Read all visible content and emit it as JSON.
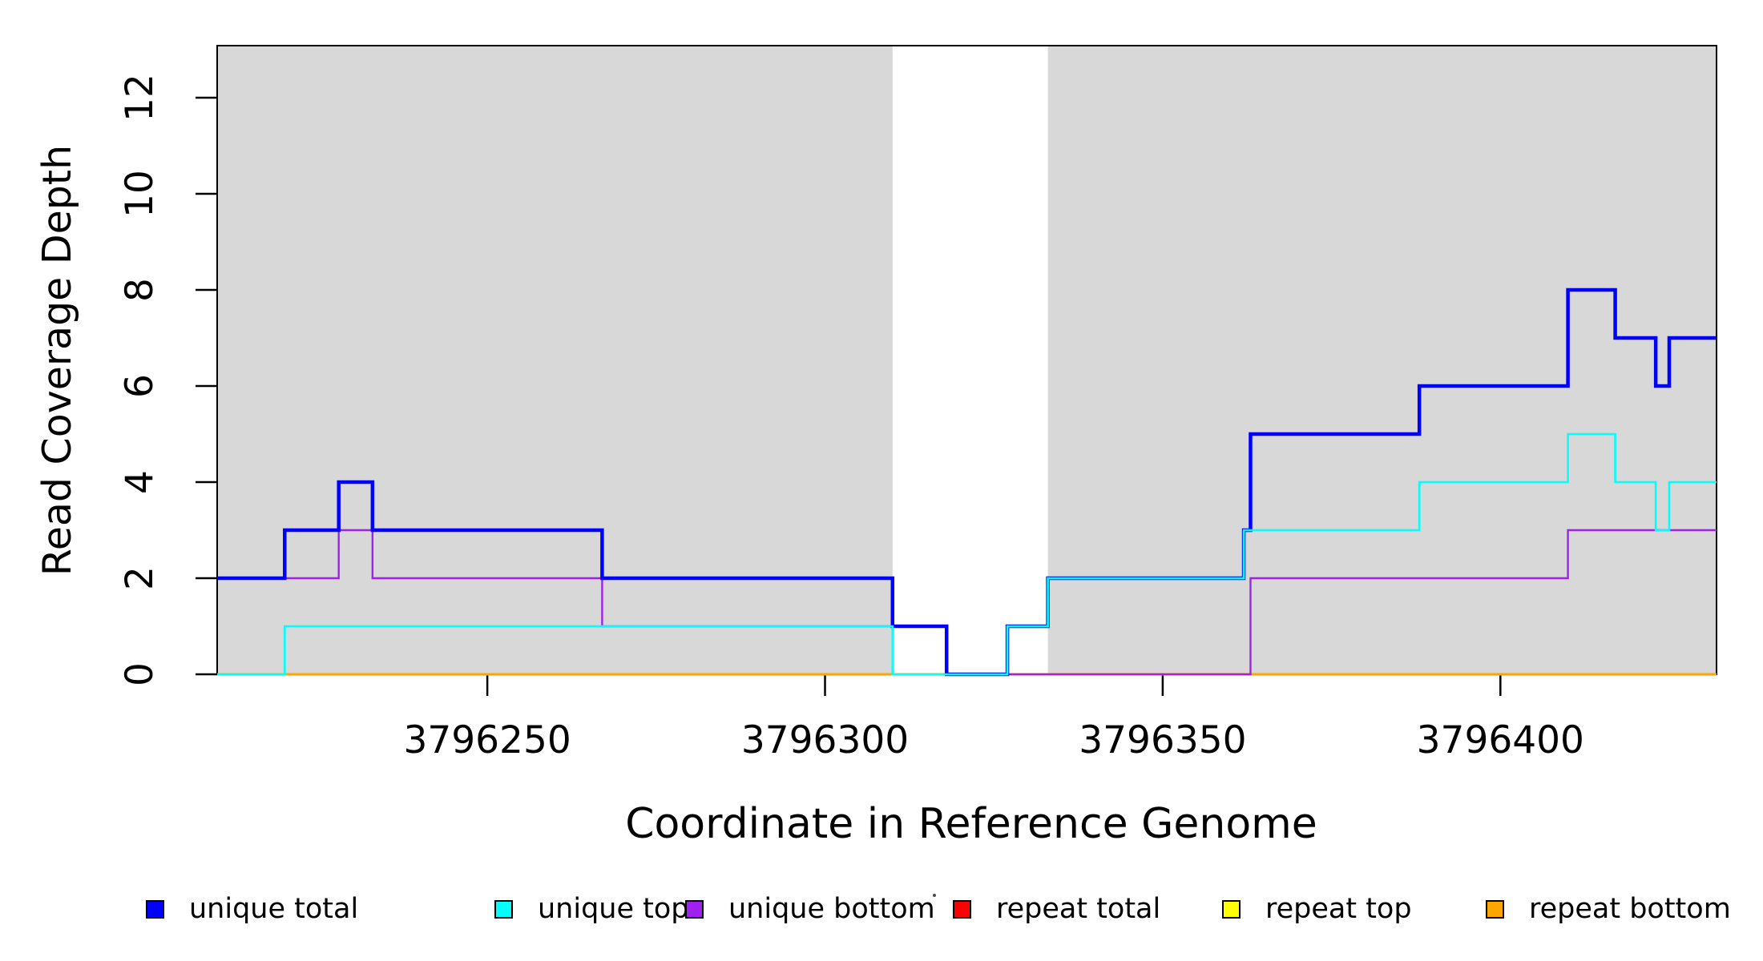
{
  "figure": {
    "background": "#FFFFFF",
    "band_color": "#D8D8D8",
    "axis_color": "#000000",
    "text_color": "#000000"
  },
  "chart_data": {
    "type": "line",
    "subtype": "step",
    "title": "",
    "xlabel": "Coordinate in Reference Genome",
    "ylabel": "Read Coverage Depth",
    "xlim": [
      3796210,
      3796432
    ],
    "ylim": [
      0,
      13.08
    ],
    "grid": false,
    "x_ticks": [
      3796250,
      3796300,
      3796350,
      3796400
    ],
    "x_tick_labels": [
      "3796250",
      "3796300",
      "3796350",
      "3796400"
    ],
    "y_ticks": [
      0,
      2,
      4,
      6,
      8,
      10,
      12
    ],
    "y_tick_labels": [
      "0",
      "2",
      "4",
      "6",
      "8",
      "10",
      "12"
    ],
    "shaded_regions": [
      {
        "name": "unique-alignability-band-left",
        "from": 3796210,
        "to": 3796310
      },
      {
        "name": "unique-alignability-band-right",
        "from": 3796333,
        "to": 3796432
      }
    ],
    "series": [
      {
        "name": "repeat total",
        "color": "#FF0000",
        "line_width": 2.4,
        "steps": [
          [
            3796210,
            0
          ]
        ]
      },
      {
        "name": "repeat top",
        "color": "#FFFF00",
        "line_width": 2.4,
        "steps": [
          [
            3796210,
            0
          ]
        ]
      },
      {
        "name": "repeat bottom",
        "color": "#FFA500",
        "line_width": 3,
        "steps": [
          [
            3796210,
            0
          ]
        ]
      },
      {
        "name": "unique bottom",
        "color": "#A020F0",
        "line_width": 2.4,
        "steps": [
          [
            3796210,
            2
          ],
          [
            3796228,
            3
          ],
          [
            3796233,
            2
          ],
          [
            3796267,
            1
          ],
          [
            3796318,
            0
          ],
          [
            3796363,
            2
          ],
          [
            3796410,
            3
          ]
        ]
      },
      {
        "name": "unique total",
        "color": "#0000FF",
        "line_width": 4.5,
        "steps": [
          [
            3796210,
            2
          ],
          [
            3796220,
            3
          ],
          [
            3796228,
            4
          ],
          [
            3796233,
            3
          ],
          [
            3796267,
            2
          ],
          [
            3796310,
            1
          ],
          [
            3796318,
            0
          ],
          [
            3796327,
            1
          ],
          [
            3796333,
            2
          ],
          [
            3796362,
            3
          ],
          [
            3796363,
            5
          ],
          [
            3796388,
            6
          ],
          [
            3796410,
            8
          ],
          [
            3796417,
            7
          ],
          [
            3796423,
            6
          ],
          [
            3796425,
            7
          ]
        ]
      },
      {
        "name": "unique top",
        "color": "#00FFFF",
        "line_width": 2.6,
        "steps": [
          [
            3796210,
            0
          ],
          [
            3796220,
            1
          ],
          [
            3796310,
            0
          ],
          [
            3796327,
            1
          ],
          [
            3796333,
            2
          ],
          [
            3796362,
            3
          ],
          [
            3796388,
            4
          ],
          [
            3796410,
            5
          ],
          [
            3796417,
            4
          ],
          [
            3796423,
            3
          ],
          [
            3796425,
            4
          ]
        ]
      }
    ],
    "legend_position": "bottom"
  },
  "legend": {
    "items": [
      {
        "label": "unique total",
        "color": "#0000FF"
      },
      {
        "label": "unique top",
        "color": "#00FFFF"
      },
      {
        "label": "unique bottom",
        "color": "#A020F0"
      },
      {
        "label": "repeat total",
        "color": "#FF0000"
      },
      {
        "label": "repeat top",
        "color": "#FFFF00"
      },
      {
        "label": "repeat bottom",
        "color": "#FFA500"
      }
    ]
  }
}
